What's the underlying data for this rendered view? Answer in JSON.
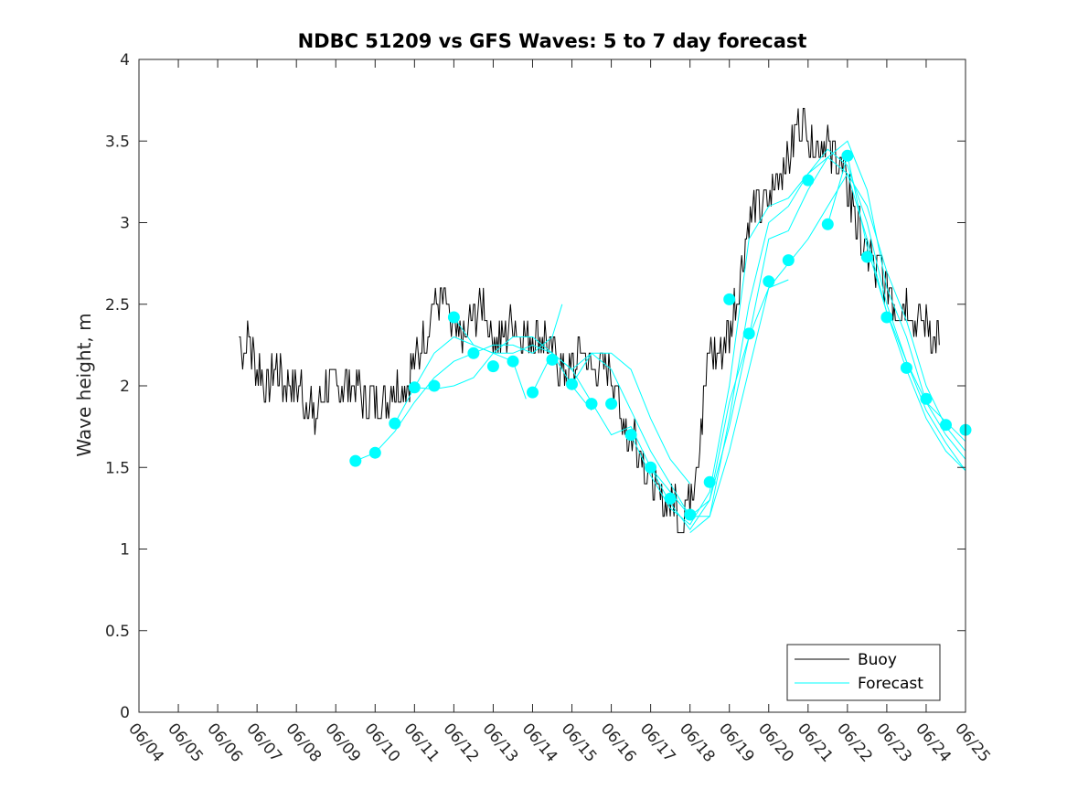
{
  "chart_data": {
    "type": "line",
    "title": "NDBC 51209 vs GFS Waves: 5 to 7 day forecast",
    "xlabel": "",
    "ylabel": "Wave height, m",
    "ylim": [
      0,
      4
    ],
    "xlim": [
      "06/04",
      "06/25"
    ],
    "x_tick_labels": [
      "06/04",
      "06/05",
      "06/06",
      "06/07",
      "06/08",
      "06/09",
      "06/10",
      "06/11",
      "06/12",
      "06/13",
      "06/14",
      "06/15",
      "06/16",
      "06/17",
      "06/18",
      "06/19",
      "06/20",
      "06/21",
      "06/22",
      "06/23",
      "06/24",
      "06/25"
    ],
    "y_tick_labels": [
      "0",
      "0.5",
      "1",
      "1.5",
      "2",
      "2.5",
      "3",
      "3.5",
      "4"
    ],
    "y_ticks": [
      0,
      0.5,
      1,
      1.5,
      2,
      2.5,
      3,
      3.5,
      4
    ],
    "grid": false,
    "legend_position": "bottom-right",
    "colors": {
      "buoy": "#000000",
      "forecast": "#00ffff",
      "axes": "#262626"
    },
    "buoy": {
      "name": "Buoy",
      "points": [
        [
          "06/06 13:00",
          2.3
        ],
        [
          "06/06 16:00",
          2.2
        ],
        [
          "06/06 19:00",
          2.3
        ],
        [
          "06/07 00:00",
          2.1
        ],
        [
          "06/07 06:00",
          2.0
        ],
        [
          "06/07 12:00",
          2.1
        ],
        [
          "06/07 18:00",
          2.0
        ],
        [
          "06/08 00:00",
          2.0
        ],
        [
          "06/08 06:00",
          1.9
        ],
        [
          "06/08 12:00",
          1.8
        ],
        [
          "06/08 18:00",
          2.0
        ],
        [
          "06/09 00:00",
          2.0
        ],
        [
          "06/09 06:00",
          2.0
        ],
        [
          "06/09 12:00",
          2.0
        ],
        [
          "06/09 18:00",
          1.9
        ],
        [
          "06/10 00:00",
          1.9
        ],
        [
          "06/10 06:00",
          1.9
        ],
        [
          "06/10 12:00",
          2.0
        ],
        [
          "06/10 18:00",
          2.0
        ],
        [
          "06/11 00:00",
          2.1
        ],
        [
          "06/11 06:00",
          2.3
        ],
        [
          "06/11 12:00",
          2.5
        ],
        [
          "06/11 18:00",
          2.5
        ],
        [
          "06/12 00:00",
          2.3
        ],
        [
          "06/12 06:00",
          2.3
        ],
        [
          "06/12 12:00",
          2.4
        ],
        [
          "06/12 18:00",
          2.5
        ],
        [
          "06/13 00:00",
          2.3
        ],
        [
          "06/13 06:00",
          2.3
        ],
        [
          "06/13 12:00",
          2.4
        ],
        [
          "06/13 18:00",
          2.3
        ],
        [
          "06/14 00:00",
          2.3
        ],
        [
          "06/14 06:00",
          2.3
        ],
        [
          "06/14 12:00",
          2.2
        ],
        [
          "06/14 18:00",
          2.1
        ],
        [
          "06/15 00:00",
          2.1
        ],
        [
          "06/15 06:00",
          2.2
        ],
        [
          "06/15 12:00",
          2.1
        ],
        [
          "06/15 18:00",
          2.1
        ],
        [
          "06/16 00:00",
          2.1
        ],
        [
          "06/16 06:00",
          1.8
        ],
        [
          "06/16 12:00",
          1.7
        ],
        [
          "06/16 18:00",
          1.6
        ],
        [
          "06/17 00:00",
          1.4
        ],
        [
          "06/17 06:00",
          1.3
        ],
        [
          "06/17 12:00",
          1.3
        ],
        [
          "06/17 18:00",
          1.2
        ],
        [
          "06/18 00:00",
          1.3
        ],
        [
          "06/18 06:00",
          1.7
        ],
        [
          "06/18 12:00",
          2.2
        ],
        [
          "06/18 18:00",
          2.2
        ],
        [
          "06/19 00:00",
          2.3
        ],
        [
          "06/19 06:00",
          2.6
        ],
        [
          "06/19 12:00",
          3.0
        ],
        [
          "06/19 18:00",
          3.1
        ],
        [
          "06/20 00:00",
          3.1
        ],
        [
          "06/20 06:00",
          3.3
        ],
        [
          "06/20 12:00",
          3.4
        ],
        [
          "06/20 18:00",
          3.6
        ],
        [
          "06/21 00:00",
          3.55
        ],
        [
          "06/21 06:00",
          3.45
        ],
        [
          "06/21 12:00",
          3.45
        ],
        [
          "06/21 18:00",
          3.4
        ],
        [
          "06/22 00:00",
          3.2
        ],
        [
          "06/22 06:00",
          3.0
        ],
        [
          "06/22 12:00",
          2.8
        ],
        [
          "06/22 18:00",
          2.7
        ],
        [
          "06/23 00:00",
          2.6
        ],
        [
          "06/23 06:00",
          2.5
        ],
        [
          "06/23 12:00",
          2.5
        ],
        [
          "06/23 18:00",
          2.4
        ],
        [
          "06/24 00:00",
          2.4
        ],
        [
          "06/24 06:00",
          2.3
        ],
        [
          "06/24 08:00",
          2.25
        ]
      ]
    },
    "forecast": {
      "name": "Forecast",
      "markers": [
        [
          "06/09 12:00",
          1.54
        ],
        [
          "06/10 00:00",
          1.59
        ],
        [
          "06/10 12:00",
          1.77
        ],
        [
          "06/11 00:00",
          1.99
        ],
        [
          "06/11 12:00",
          2.0
        ],
        [
          "06/12 00:00",
          2.42
        ],
        [
          "06/12 12:00",
          2.2
        ],
        [
          "06/13 00:00",
          2.12
        ],
        [
          "06/13 12:00",
          2.15
        ],
        [
          "06/14 00:00",
          1.96
        ],
        [
          "06/14 12:00",
          2.16
        ],
        [
          "06/15 00:00",
          2.01
        ],
        [
          "06/15 12:00",
          1.89
        ],
        [
          "06/16 00:00",
          1.89
        ],
        [
          "06/16 12:00",
          1.7
        ],
        [
          "06/17 00:00",
          1.5
        ],
        [
          "06/17 12:00",
          1.31
        ],
        [
          "06/18 00:00",
          1.21
        ],
        [
          "06/18 12:00",
          1.41
        ],
        [
          "06/19 00:00",
          2.53
        ],
        [
          "06/19 12:00",
          2.32
        ],
        [
          "06/20 00:00",
          2.64
        ],
        [
          "06/20 12:00",
          2.77
        ],
        [
          "06/21 00:00",
          3.26
        ],
        [
          "06/21 12:00",
          2.99
        ],
        [
          "06/22 00:00",
          3.41
        ],
        [
          "06/22 12:00",
          2.79
        ],
        [
          "06/23 00:00",
          2.42
        ],
        [
          "06/23 12:00",
          2.11
        ],
        [
          "06/24 00:00",
          1.92
        ],
        [
          "06/24 12:00",
          1.76
        ],
        [
          "06/25 00:00",
          1.73
        ]
      ],
      "runs": [
        [
          [
            "06/09 12:00",
            1.54
          ],
          [
            "06/10 00:00",
            1.59
          ],
          [
            "06/10 12:00",
            1.72
          ],
          [
            "06/11 00:00",
            1.9
          ],
          [
            "06/11 12:00",
            2.05
          ],
          [
            "06/12 00:00",
            2.15
          ],
          [
            "06/12 12:00",
            2.2
          ],
          [
            "06/13 00:00",
            2.25
          ],
          [
            "06/13 12:00",
            2.25
          ],
          [
            "06/14 00:00",
            2.2
          ],
          [
            "06/14 12:00",
            2.3
          ],
          [
            "06/14 18:00",
            2.5
          ]
        ],
        [
          [
            "06/10 12:00",
            1.77
          ],
          [
            "06/11 00:00",
            1.99
          ],
          [
            "06/11 12:00",
            2.2
          ],
          [
            "06/12 00:00",
            2.3
          ],
          [
            "06/12 12:00",
            2.25
          ],
          [
            "06/13 00:00",
            2.2
          ],
          [
            "06/13 12:00",
            2.2
          ],
          [
            "06/14 00:00",
            2.25
          ],
          [
            "06/14 12:00",
            2.2
          ],
          [
            "06/15 00:00",
            2.0
          ],
          [
            "06/15 12:00",
            1.85
          ]
        ],
        [
          [
            "06/11 00:00",
            1.99
          ],
          [
            "06/11 12:00",
            1.98
          ],
          [
            "06/12 00:00",
            2.0
          ],
          [
            "06/12 12:00",
            2.05
          ],
          [
            "06/13 00:00",
            2.2
          ],
          [
            "06/13 12:00",
            2.3
          ],
          [
            "06/14 00:00",
            2.3
          ],
          [
            "06/14 12:00",
            2.2
          ],
          [
            "06/15 00:00",
            2.1
          ],
          [
            "06/15 12:00",
            2.2
          ],
          [
            "06/16 00:00",
            2.2
          ],
          [
            "06/16 12:00",
            2.1
          ],
          [
            "06/17 00:00",
            1.8
          ],
          [
            "06/17 12:00",
            1.55
          ],
          [
            "06/18 00:00",
            1.4
          ]
        ],
        [
          [
            "06/12 00:00",
            2.42
          ],
          [
            "06/12 12:00",
            2.25
          ],
          [
            "06/13 00:00",
            2.2
          ],
          [
            "06/13 12:00",
            2.15
          ],
          [
            "06/13 20:00",
            1.92
          ]
        ],
        [
          [
            "06/14 00:00",
            1.96
          ],
          [
            "06/14 12:00",
            2.2
          ],
          [
            "06/15 00:00",
            2.1
          ],
          [
            "06/15 12:00",
            1.9
          ],
          [
            "06/16 00:00",
            1.7
          ],
          [
            "06/16 12:00",
            1.75
          ],
          [
            "06/17 00:00",
            1.5
          ],
          [
            "06/17 12:00",
            1.35
          ],
          [
            "06/18 00:00",
            1.2
          ],
          [
            "06/18 12:00",
            1.3
          ],
          [
            "06/19 00:00",
            1.9
          ],
          [
            "06/19 12:00",
            2.3
          ],
          [
            "06/20 00:00",
            2.6
          ],
          [
            "06/20 12:00",
            2.65
          ]
        ],
        [
          [
            "06/15 00:00",
            2.01
          ],
          [
            "06/15 12:00",
            2.2
          ],
          [
            "06/16 00:00",
            2.1
          ],
          [
            "06/16 12:00",
            1.85
          ],
          [
            "06/17 00:00",
            1.6
          ],
          [
            "06/17 12:00",
            1.4
          ],
          [
            "06/18 00:00",
            1.2
          ],
          [
            "06/18 12:00",
            1.2
          ],
          [
            "06/19 00:00",
            1.8
          ],
          [
            "06/19 12:00",
            2.5
          ],
          [
            "06/20 00:00",
            3.0
          ],
          [
            "06/20 12:00",
            3.1
          ],
          [
            "06/21 00:00",
            3.3
          ],
          [
            "06/21 12:00",
            3.4
          ],
          [
            "06/22 00:00",
            3.5
          ],
          [
            "06/22 12:00",
            3.2
          ],
          [
            "06/23 00:00",
            2.6
          ],
          [
            "06/23 12:00",
            2.3
          ],
          [
            "06/24 00:00",
            1.9
          ],
          [
            "06/24 12:00",
            1.7
          ],
          [
            "06/25 00:00",
            1.55
          ]
        ],
        [
          [
            "06/16 12:00",
            1.7
          ],
          [
            "06/17 00:00",
            1.45
          ],
          [
            "06/17 12:00",
            1.25
          ],
          [
            "06/18 00:00",
            1.15
          ],
          [
            "06/18 12:00",
            1.35
          ],
          [
            "06/19 00:00",
            2.0
          ],
          [
            "06/19 12:00",
            2.9
          ],
          [
            "06/20 00:00",
            3.1
          ],
          [
            "06/20 12:00",
            3.15
          ],
          [
            "06/21 00:00",
            3.3
          ],
          [
            "06/21 12:00",
            3.45
          ],
          [
            "06/22 00:00",
            3.35
          ],
          [
            "06/22 12:00",
            3.0
          ],
          [
            "06/23 00:00",
            2.5
          ],
          [
            "06/23 12:00",
            2.15
          ],
          [
            "06/24 00:00",
            1.85
          ],
          [
            "06/24 12:00",
            1.65
          ],
          [
            "06/25 00:00",
            1.48
          ]
        ],
        [
          [
            "06/17 00:00",
            1.5
          ],
          [
            "06/17 12:00",
            1.28
          ],
          [
            "06/18 00:00",
            1.12
          ],
          [
            "06/18 12:00",
            1.3
          ],
          [
            "06/19 00:00",
            1.75
          ],
          [
            "06/19 12:00",
            2.3
          ],
          [
            "06/20 00:00",
            2.9
          ],
          [
            "06/20 12:00",
            2.95
          ],
          [
            "06/21 00:00",
            3.2
          ],
          [
            "06/21 12:00",
            3.4
          ],
          [
            "06/22 00:00",
            3.3
          ],
          [
            "06/22 12:00",
            2.9
          ],
          [
            "06/23 00:00",
            2.45
          ],
          [
            "06/23 12:00",
            2.1
          ],
          [
            "06/24 00:00",
            1.8
          ],
          [
            "06/24 12:00",
            1.6
          ],
          [
            "06/25 00:00",
            1.48
          ]
        ],
        [
          [
            "06/18 00:00",
            1.1
          ],
          [
            "06/18 12:00",
            1.2
          ],
          [
            "06/19 00:00",
            1.6
          ],
          [
            "06/19 12:00",
            2.1
          ],
          [
            "06/20 00:00",
            2.6
          ],
          [
            "06/20 12:00",
            2.75
          ],
          [
            "06/21 00:00",
            2.9
          ],
          [
            "06/21 12:00",
            3.1
          ],
          [
            "06/22 00:00",
            3.3
          ],
          [
            "06/22 12:00",
            3.1
          ],
          [
            "06/23 00:00",
            2.7
          ],
          [
            "06/23 12:00",
            2.4
          ],
          [
            "06/24 00:00",
            2.0
          ],
          [
            "06/24 12:00",
            1.75
          ],
          [
            "06/25 00:00",
            1.6
          ]
        ],
        [
          [
            "06/21 12:00",
            2.99
          ],
          [
            "06/22 00:00",
            3.41
          ],
          [
            "06/22 12:00",
            2.85
          ],
          [
            "06/23 00:00",
            2.45
          ],
          [
            "06/23 12:00",
            2.15
          ],
          [
            "06/24 00:00",
            1.9
          ],
          [
            "06/24 12:00",
            1.78
          ],
          [
            "06/25 00:00",
            1.66
          ]
        ]
      ]
    }
  }
}
